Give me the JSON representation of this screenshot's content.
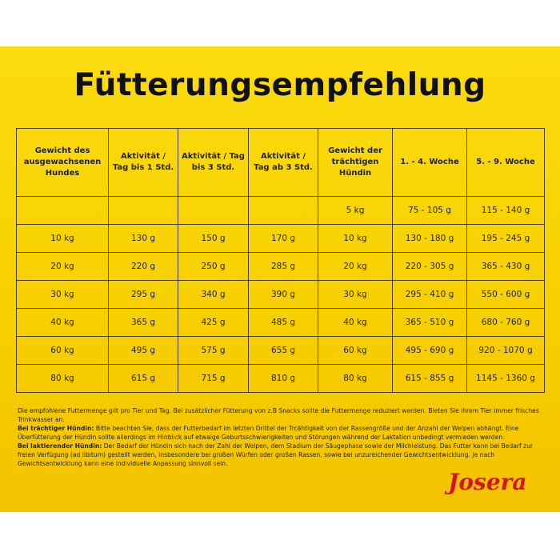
{
  "title": "Fütterungsempfehlung",
  "table": {
    "header": [
      "Gewicht des ausgewachsenen Hundes",
      "Aktivität / Tag bis 1 Std.",
      "Aktivität / Tag bis 3 Std.",
      "Aktivität / Tag ab 3 Std.",
      "Gewicht der trächtigen Hündin",
      "1. - 4. Woche",
      "5. - 9. Woche"
    ],
    "rows": [
      [
        null,
        null,
        null,
        null,
        "5 kg",
        "75 - 105 g",
        "115 - 140 g"
      ],
      [
        "10 kg",
        "130 g",
        "150 g",
        "170 g",
        "10 kg",
        "130 - 180 g",
        "195 - 245 g"
      ],
      [
        "20 kg",
        "220 g",
        "250 g",
        "285 g",
        "20 kg",
        "220 - 305 g",
        "365 - 430 g"
      ],
      [
        "30 kg",
        "295 g",
        "340 g",
        "390 g",
        "30 kg",
        "295 - 410 g",
        "550 - 600 g"
      ],
      [
        "40 kg",
        "365 g",
        "425 g",
        "485 g",
        "40 kg",
        "365 - 510 g",
        "680 - 760 g"
      ],
      [
        "60 kg",
        "495 g",
        "575 g",
        "655 g",
        "60 kg",
        "495 - 690 g",
        "920 - 1070 g"
      ],
      [
        "80 kg",
        "615 g",
        "715 g",
        "810 g",
        "80 kg",
        "615 - 855 g",
        "1145 - 1360 g"
      ]
    ]
  },
  "notes": [
    {
      "text": "Die empfohlene Futtermenge gilt pro Tier und Tag. Bei zusätzlicher Fütterung von z.B Snacks sollte die Futtermenge reduziert werden. Bieten Sie ihrem Tier immer frisches Trinkwasser an."
    },
    {
      "label": "Bei trächtiger Hündin:",
      "text": "Bitte beachten Sie, dass der Futterbedarf im letzten Drittel der Trcähtigkeit von der Rassengröße und der Anzahl der Welpen abhängt. Eine Überfütterung der Hündin sollte allerdings im Hinblick auf etwaige Geburtsschwierigkeiten und Störungen während der Laktation unbedingt vermieden werden."
    },
    {
      "label": "Bei laktierender Hündin:",
      "text": "Der Bedarf der Hündin sich nach der Zahl der Welpen, dem Stadium der Säugephase sowie der Milchleistung. Das Futter kann bei Bedarf zur freien Verfügung (ad libitum) gestellt werden, insbesondere bei großen Würfen oder großen Rassen, sowie bei unzureichender Gewichtsentwicklung. Je nach Gewichtsentwicklung kann eine individuelle Anpassung sinnvoll sein."
    }
  ],
  "brand": "Josera"
}
